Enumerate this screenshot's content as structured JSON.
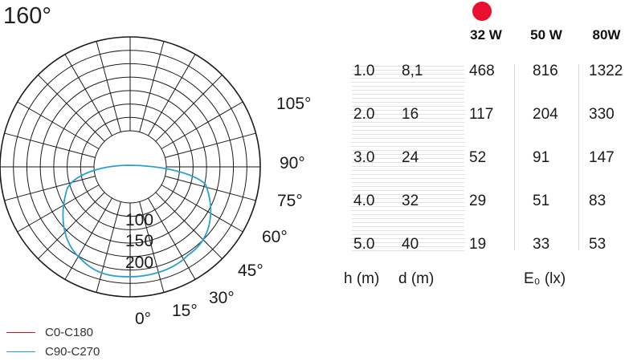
{
  "chart_data": [
    {
      "type": "polar",
      "title": "160°",
      "angle_labels": [
        "0°",
        "15°",
        "30°",
        "45°",
        "60°",
        "75°",
        "90°",
        "105°"
      ],
      "radial_labels": [
        "100",
        "150",
        "200"
      ],
      "legend": [
        {
          "name": "C0-C180",
          "color": "#b0243a"
        },
        {
          "name": "C90-C270",
          "color": "#2a9fd0"
        }
      ],
      "series": [
        {
          "name": "C90-C270",
          "color": "#2a9fd0",
          "angles": [
            0,
            10,
            20,
            30,
            40,
            50,
            60,
            70,
            80,
            90
          ],
          "values": [
            228,
            225,
            218,
            213,
            215,
            233,
            255,
            258,
            255,
            230
          ]
        }
      ],
      "radial_range": [
        0,
        350
      ]
    },
    {
      "type": "table",
      "header": [
        "32 W",
        "50 W",
        "80W"
      ],
      "rows": [
        {
          "h": "1.0",
          "d": "8,1",
          "e32": "468",
          "e50": "816",
          "e80": "1322"
        },
        {
          "h": "2.0",
          "d": "16",
          "e32": "117",
          "e50": "204",
          "e80": "330"
        },
        {
          "h": "3.0",
          "d": "24",
          "e32": "52",
          "e50": "91",
          "e80": "147"
        },
        {
          "h": "4.0",
          "d": "32",
          "e32": "29",
          "e50": "51",
          "e80": "83"
        },
        {
          "h": "5.0",
          "d": "40",
          "e32": "19",
          "e50": "33",
          "e80": "53"
        }
      ],
      "footer": {
        "h": "h (m)",
        "d": "d (m)",
        "e": "E₀ (lx)"
      }
    }
  ],
  "colors": {
    "highlight_dot": "#e8102e",
    "grid": "#1a1a1a"
  }
}
